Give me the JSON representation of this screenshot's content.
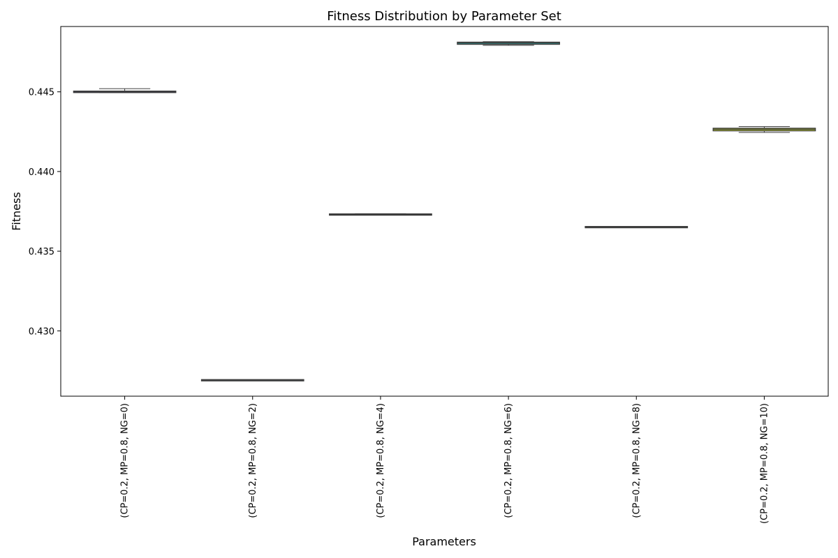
{
  "chart_data": {
    "type": "box",
    "title": "Fitness Distribution by Parameter Set",
    "xlabel": "Parameters",
    "ylabel": "Fitness",
    "ylim": [
      0.4259,
      0.4491
    ],
    "yticks": [
      0.43,
      0.435,
      0.44,
      0.445
    ],
    "ytick_labels": [
      "0.430",
      "0.435",
      "0.440",
      "0.445"
    ],
    "categories": [
      "(CP=0.2, MP=0.8, NG=0)",
      "(CP=0.2, MP=0.8, NG=2)",
      "(CP=0.2, MP=0.8, NG=4)",
      "(CP=0.2, MP=0.8, NG=6)",
      "(CP=0.2, MP=0.8, NG=8)",
      "(CP=0.2, MP=0.8, NG=10)"
    ],
    "boxes": [
      {
        "whisker_low": 0.44495,
        "q1": 0.44495,
        "median": 0.445,
        "q3": 0.44505,
        "whisker_high": 0.4452,
        "color": "#3b3f5e"
      },
      {
        "whisker_low": 0.42689,
        "q1": 0.42689,
        "median": 0.4269,
        "q3": 0.42691,
        "whisker_high": 0.42692,
        "color": "#464a6e"
      },
      {
        "whisker_low": 0.43726,
        "q1": 0.43726,
        "median": 0.4373,
        "q3": 0.43734,
        "whisker_high": 0.43735,
        "color": "#3a5a8c"
      },
      {
        "whisker_low": 0.44792,
        "q1": 0.44798,
        "median": 0.44806,
        "q3": 0.44812,
        "whisker_high": 0.44815,
        "color": "#2f8f8a"
      },
      {
        "whisker_low": 0.4365,
        "q1": 0.4365,
        "median": 0.43651,
        "q3": 0.43652,
        "whisker_high": 0.43652,
        "color": "#4f9e8a"
      },
      {
        "whisker_low": 0.44245,
        "q1": 0.44255,
        "median": 0.44265,
        "q3": 0.44272,
        "whisker_high": 0.44282,
        "color": "#a8b533"
      }
    ],
    "grid": false,
    "legend": "none"
  }
}
